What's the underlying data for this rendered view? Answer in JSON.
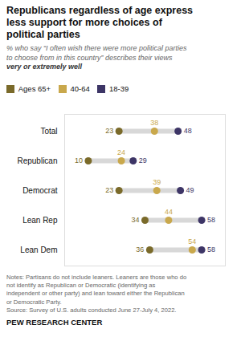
{
  "chart_data": {
    "type": "dot",
    "title": "Republicans regardless of age express\nless support for more choices of\npolitical parties",
    "subtitle": [
      "% who say “I often wish there were more political parties",
      "to choose from in this country” describes their views",
      "very or extremely well"
    ],
    "categories": [
      "Total",
      "Republican",
      "Democrat",
      "Lean Rep",
      "Lean Dem"
    ],
    "series": [
      {
        "name": "Ages 65+",
        "color": "#7a6a2a",
        "values": [
          23,
          10,
          23,
          34,
          36
        ]
      },
      {
        "name": "40-64",
        "color": "#c9a84c",
        "values": [
          38,
          24,
          39,
          44,
          54
        ]
      },
      {
        "name": "18-39",
        "color": "#3d3566",
        "values": [
          48,
          29,
          49,
          58,
          58
        ]
      }
    ],
    "xlim": [
      0,
      68
    ],
    "tick_labels": "y",
    "grid": false,
    "data_labels": true,
    "legend": "top",
    "notes": [
      "Notes: Partisans do not include leaners. Leaners are those who do",
      "not identify as Republican or Democratic (identifying as",
      "independent or other party) and lean toward either the Republican",
      "or Democratic Party.",
      "Source: Survey of U.S. adults conducted June 27-July 4, 2022."
    ],
    "footer": "PEW RESEARCH CENTER"
  }
}
